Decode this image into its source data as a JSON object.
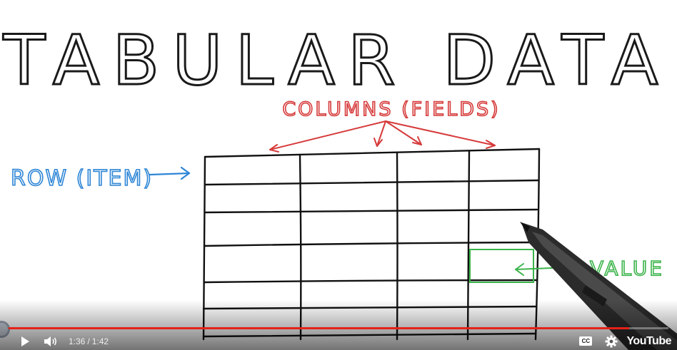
{
  "slide": {
    "title": "TABULAR DATA",
    "columns_label": "COLUMNS (FIELDS)",
    "row_label": "ROW (ITEM)",
    "value_label": "VALUE",
    "colors": {
      "title": "#1a1a1a",
      "columns": "#d63a3a",
      "row": "#2e86d6",
      "value": "#3cb44b",
      "grid": "#111111"
    }
  },
  "player": {
    "time_current": "1:36",
    "time_separator": "/",
    "time_total": "1:42",
    "progress_fraction": 0.94,
    "cc_label": "CC",
    "logo": "YouTube",
    "icons": {
      "play": "play-icon",
      "volume": "volume-icon",
      "settings": "gear-icon"
    }
  }
}
